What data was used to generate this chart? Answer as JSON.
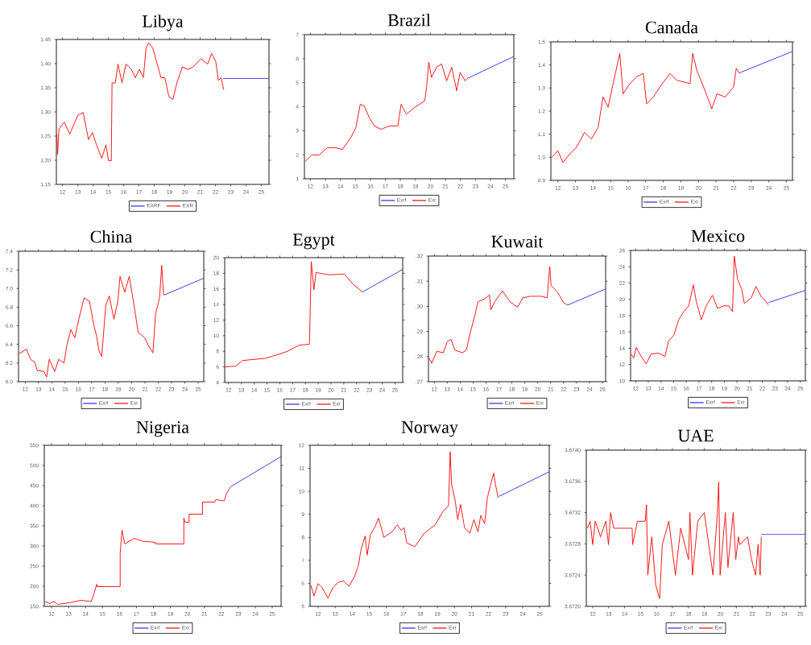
{
  "chart_data": [
    {
      "type": "line",
      "title": "Libya",
      "legend": "bottom",
      "xlim": [
        11.6,
        25.5
      ],
      "ylim": [
        1.15,
        1.45
      ],
      "xticks": [
        12,
        13,
        14,
        15,
        16,
        17,
        18,
        19,
        20,
        21,
        22,
        23,
        24,
        25
      ],
      "yticks": [
        {
          "value": 1.15,
          "label": "1.15"
        },
        {
          "value": 1.2,
          "label": "1.20"
        },
        {
          "value": 1.25,
          "label": "1.25"
        },
        {
          "value": 1.3,
          "label": "1.30"
        },
        {
          "value": 1.35,
          "label": "1.35"
        },
        {
          "value": 1.4,
          "label": "1.40"
        },
        {
          "value": 1.45,
          "label": "1.45"
        }
      ],
      "series": [
        {
          "name": "EXRF",
          "color": "#2828ff",
          "x": [
            22.49,
            25.48
          ],
          "values": [
            1.369,
            1.369
          ]
        },
        {
          "name": "EXR",
          "color": "#ff0000",
          "x": [
            11.63,
            11.68,
            11.77,
            12.12,
            12.47,
            13.0,
            13.35,
            13.7,
            13.96,
            14.22,
            14.57,
            14.84,
            15.01,
            15.19,
            15.24,
            15.45,
            15.63,
            15.89,
            16.15,
            16.5,
            16.76,
            17.03,
            17.29,
            17.46,
            17.64,
            17.9,
            18.25,
            18.43,
            18.69,
            18.95,
            19.22,
            19.48,
            19.83,
            20.18,
            20.53,
            21.05,
            21.49,
            21.75,
            22.02,
            22.19,
            22.37,
            22.54
          ],
          "values": [
            1.254,
            1.212,
            1.265,
            1.279,
            1.254,
            1.293,
            1.299,
            1.243,
            1.257,
            1.232,
            1.204,
            1.232,
            1.199,
            1.199,
            1.36,
            1.36,
            1.399,
            1.36,
            1.399,
            1.388,
            1.371,
            1.388,
            1.371,
            1.432,
            1.443,
            1.432,
            1.393,
            1.371,
            1.371,
            1.332,
            1.326,
            1.36,
            1.393,
            1.388,
            1.393,
            1.41,
            1.399,
            1.421,
            1.404,
            1.365,
            1.371,
            1.346
          ]
        }
      ]
    },
    {
      "type": "line",
      "title": "Brazil",
      "legend": "bottom",
      "xlim": [
        11.6,
        25.56
      ],
      "ylim": [
        1,
        7
      ],
      "xticks": [
        12,
        13,
        14,
        15,
        16,
        17,
        18,
        19,
        20,
        21,
        22,
        23,
        24,
        25
      ],
      "yticks": [
        1,
        2,
        3,
        4,
        5,
        6,
        7
      ],
      "series": [
        {
          "name": "Exrf",
          "color": "#2828ff",
          "x": [
            22.54,
            25.56
          ],
          "values": [
            5.2,
            6.09
          ]
        },
        {
          "name": "Exr",
          "color": "#ff0000",
          "x": [
            11.66,
            12.11,
            12.56,
            13.12,
            13.68,
            14.13,
            14.69,
            15.03,
            15.32,
            15.59,
            15.92,
            16.26,
            16.71,
            17.27,
            17.83,
            18.05,
            18.39,
            18.95,
            19.62,
            19.74,
            19.89,
            20.07,
            20.41,
            20.74,
            21.08,
            21.42,
            21.75,
            21.98,
            22.31,
            22.54
          ],
          "values": [
            1.73,
            2.0,
            1.98,
            2.29,
            2.29,
            2.22,
            2.71,
            3.13,
            4.1,
            4.03,
            3.55,
            3.2,
            3.06,
            3.2,
            3.2,
            4.1,
            3.69,
            3.97,
            4.24,
            4.8,
            5.85,
            5.22,
            5.64,
            5.78,
            5.08,
            5.64,
            4.66,
            5.43,
            5.08,
            5.22
          ]
        }
      ]
    },
    {
      "type": "line",
      "title": "Canada",
      "legend": "bottom",
      "xlim": [
        11.6,
        25.35
      ],
      "ylim": [
        0.9,
        1.5
      ],
      "xticks": [
        12,
        13,
        14,
        15,
        16,
        17,
        18,
        19,
        20,
        21,
        22,
        23,
        24,
        25
      ],
      "yticks": [
        {
          "value": 0.9,
          "label": "0.9"
        },
        {
          "value": 1.0,
          "label": "1.0"
        },
        {
          "value": 1.1,
          "label": "1.1"
        },
        {
          "value": 1.2,
          "label": "1.2"
        },
        {
          "value": 1.3,
          "label": "1.3"
        },
        {
          "value": 1.4,
          "label": "1.4"
        },
        {
          "value": 1.5,
          "label": "1.5"
        }
      ],
      "series": [
        {
          "name": "Exrf",
          "color": "#2828ff",
          "x": [
            22.34,
            25.33
          ],
          "values": [
            1.366,
            1.458
          ]
        },
        {
          "name": "Exr",
          "color": "#ff0000",
          "x": [
            11.64,
            12.0,
            12.29,
            12.67,
            13.05,
            13.52,
            13.9,
            14.29,
            14.57,
            14.86,
            15.14,
            15.52,
            15.71,
            16.1,
            16.48,
            16.86,
            17.05,
            17.43,
            17.81,
            18.38,
            18.76,
            19.52,
            19.67,
            19.9,
            20.29,
            20.76,
            21.05,
            21.52,
            22.0,
            22.15,
            22.34
          ],
          "values": [
            0.999,
            1.028,
            0.977,
            1.014,
            1.043,
            1.108,
            1.079,
            1.13,
            1.261,
            1.217,
            1.319,
            1.45,
            1.275,
            1.319,
            1.349,
            1.363,
            1.232,
            1.261,
            1.305,
            1.363,
            1.334,
            1.319,
            1.45,
            1.378,
            1.305,
            1.21,
            1.275,
            1.261,
            1.305,
            1.385,
            1.363
          ]
        }
      ]
    },
    {
      "type": "line",
      "title": "China",
      "legend": "bottom",
      "xlim": [
        11.5,
        25.42
      ],
      "ylim": [
        6.0,
        7.4
      ],
      "xticks": [
        12,
        13,
        14,
        15,
        16,
        17,
        18,
        19,
        20,
        21,
        22,
        23,
        24,
        25
      ],
      "yticks": [
        {
          "value": 6.0,
          "label": "6.0"
        },
        {
          "value": 6.2,
          "label": "6.2"
        },
        {
          "value": 6.4,
          "label": "6.4"
        },
        {
          "value": 6.6,
          "label": "6.6"
        },
        {
          "value": 6.8,
          "label": "6.8"
        },
        {
          "value": 7.0,
          "label": "7.0"
        },
        {
          "value": 7.2,
          "label": "7.2"
        },
        {
          "value": 7.4,
          "label": "7.4"
        }
      ],
      "series": [
        {
          "name": "Exrf",
          "color": "#2828ff",
          "x": [
            22.44,
            25.41
          ],
          "values": [
            6.93,
            7.11
          ]
        },
        {
          "name": "Exr",
          "color": "#ff0000",
          "x": [
            11.54,
            12.1,
            12.4,
            12.71,
            12.91,
            13.41,
            13.61,
            13.81,
            14.22,
            14.52,
            14.92,
            15.12,
            15.43,
            15.73,
            16.03,
            16.43,
            16.84,
            17.15,
            17.35,
            17.55,
            17.75,
            18.06,
            18.32,
            18.67,
            18.97,
            19.13,
            19.48,
            19.82,
            20.18,
            20.49,
            20.99,
            21.29,
            21.6,
            21.8,
            22.1,
            22.26,
            22.4
          ],
          "values": [
            6.3,
            6.35,
            6.24,
            6.21,
            6.12,
            6.11,
            6.05,
            6.24,
            6.11,
            6.24,
            6.2,
            6.38,
            6.56,
            6.47,
            6.67,
            6.9,
            6.86,
            6.61,
            6.5,
            6.33,
            6.27,
            6.82,
            6.92,
            6.67,
            6.87,
            7.13,
            6.96,
            7.13,
            6.82,
            6.53,
            6.47,
            6.38,
            6.31,
            6.73,
            6.9,
            7.25,
            6.93
          ]
        }
      ]
    },
    {
      "type": "line",
      "title": "Egypt",
      "legend": "bottom",
      "xlim": [
        11.7,
        25.6
      ],
      "ylim": [
        4,
        20
      ],
      "xticks": [
        12,
        13,
        14,
        15,
        16,
        17,
        18,
        19,
        20,
        21,
        22,
        23,
        24,
        25
      ],
      "yticks": [
        4,
        6,
        8,
        10,
        12,
        14,
        16,
        18,
        20
      ],
      "series": [
        {
          "name": "Exrf",
          "color": "#2828ff",
          "x": [
            22.46,
            25.6
          ],
          "values": [
            15.6,
            18.5
          ]
        },
        {
          "name": "Exr",
          "color": "#ff0000",
          "x": [
            11.76,
            12.57,
            13.07,
            13.58,
            14.89,
            15.9,
            16.61,
            17.52,
            18.32,
            18.46,
            18.67,
            18.83,
            19.84,
            21.05,
            21.66,
            22.46
          ],
          "values": [
            6.0,
            6.1,
            6.8,
            6.9,
            7.1,
            7.6,
            8.0,
            8.8,
            8.9,
            19.5,
            15.9,
            18.1,
            17.8,
            17.9,
            16.7,
            15.6
          ]
        }
      ]
    },
    {
      "type": "line",
      "title": "Kuwait",
      "legend": "bottom",
      "xlim": [
        11.55,
        25.25
      ],
      "ylim": [
        0.27,
        0.32
      ],
      "xticks": [
        12,
        13,
        14,
        15,
        16,
        17,
        18,
        19,
        20,
        21,
        22,
        23,
        24,
        25
      ],
      "yticks": [
        {
          "value": 0.27,
          "label": ".27"
        },
        {
          "value": 0.28,
          "label": ".28"
        },
        {
          "value": 0.29,
          "label": ".29"
        },
        {
          "value": 0.3,
          "label": ".30"
        },
        {
          "value": 0.31,
          "label": ".31"
        },
        {
          "value": 0.32,
          "label": ".32"
        }
      ],
      "series": [
        {
          "name": "Exrf",
          "color": "#2828ff",
          "x": [
            22.32,
            25.25
          ],
          "values": [
            0.3005,
            0.3069
          ]
        },
        {
          "name": "Exr",
          "color": "#ff0000",
          "x": [
            11.6,
            11.8,
            12.2,
            12.69,
            12.99,
            13.29,
            13.59,
            14.18,
            14.48,
            14.78,
            15.17,
            15.37,
            15.87,
            16.27,
            16.37,
            16.67,
            17.27,
            17.86,
            18.45,
            18.85,
            19.44,
            20.24,
            20.73,
            20.93,
            21.03,
            21.53,
            22.02,
            22.32
          ],
          "values": [
            0.2794,
            0.2773,
            0.2821,
            0.2815,
            0.2858,
            0.2869,
            0.2826,
            0.2815,
            0.2826,
            0.2895,
            0.297,
            0.3018,
            0.3029,
            0.3045,
            0.2986,
            0.3018,
            0.3061,
            0.3018,
            0.2997,
            0.3034,
            0.304,
            0.304,
            0.3034,
            0.3157,
            0.3083,
            0.3056,
            0.3013,
            0.3005
          ]
        }
      ]
    },
    {
      "type": "line",
      "title": "Mexico",
      "legend": "bottom",
      "xlim": [
        11.6,
        25.4
      ],
      "ylim": [
        10,
        26
      ],
      "xticks": [
        12,
        13,
        14,
        15,
        16,
        17,
        18,
        19,
        20,
        21,
        22,
        23,
        24,
        25
      ],
      "yticks": [
        10,
        12,
        14,
        16,
        18,
        20,
        22,
        24,
        26
      ],
      "series": [
        {
          "name": "Exrf",
          "color": "#2828ff",
          "x": [
            22.48,
            25.4
          ],
          "values": [
            19.6,
            21.1
          ]
        },
        {
          "name": "Exr",
          "color": "#ff0000",
          "x": [
            11.64,
            11.84,
            12.04,
            12.43,
            12.83,
            13.22,
            13.82,
            14.31,
            14.61,
            15.01,
            15.4,
            15.8,
            16.19,
            16.55,
            16.78,
            17.18,
            17.57,
            18.07,
            18.46,
            18.96,
            19.35,
            19.65,
            19.79,
            20.04,
            20.38,
            20.58,
            21.13,
            21.49,
            21.92,
            22.32,
            22.48
          ],
          "values": [
            13.3,
            12.8,
            14.1,
            13.0,
            12.1,
            13.3,
            13.4,
            13.0,
            14.9,
            15.6,
            17.5,
            18.5,
            19.2,
            21.8,
            19.8,
            17.5,
            19.2,
            20.5,
            18.9,
            19.2,
            19.2,
            18.5,
            25.3,
            22.5,
            21.2,
            19.5,
            20.2,
            21.6,
            20.3,
            19.7,
            19.3
          ]
        }
      ]
    },
    {
      "type": "line",
      "title": "Nigeria",
      "legend": "bottom",
      "xlim": [
        11.57,
        25.52
      ],
      "ylim": [
        150,
        550
      ],
      "xticks": [
        12,
        13,
        14,
        15,
        16,
        17,
        18,
        19,
        20,
        21,
        22,
        23,
        24,
        25
      ],
      "yticks": [
        150,
        200,
        250,
        300,
        350,
        400,
        450,
        500,
        550
      ],
      "series": [
        {
          "name": "Exrf",
          "color": "#2828ff",
          "x": [
            22.55,
            25.52
          ],
          "values": [
            447,
            522
          ]
        },
        {
          "name": "Exr",
          "color": "#ff0000",
          "x": [
            11.62,
            11.89,
            12.13,
            12.36,
            13.07,
            13.71,
            14.34,
            14.5,
            14.66,
            14.69,
            16.04,
            16.04,
            16.15,
            16.31,
            16.87,
            17.34,
            18.13,
            18.13,
            19.79,
            19.79,
            19.86,
            20.1,
            20.1,
            20.89,
            20.89,
            21.6,
            21.68,
            22.16,
            22.32,
            22.55
          ],
          "values": [
            162,
            157,
            162,
            155,
            159,
            165,
            162,
            182,
            205,
            199,
            199,
            282,
            339,
            305,
            319,
            312,
            309,
            305,
            305,
            369,
            359,
            359,
            379,
            379,
            409,
            409,
            415,
            412,
            432,
            447
          ]
        }
      ]
    },
    {
      "type": "line",
      "title": "Norway",
      "legend": "bottom",
      "xlim": [
        11.53,
        25.56
      ],
      "ylim": [
        5,
        12
      ],
      "xticks": [
        12,
        13,
        14,
        15,
        16,
        17,
        18,
        19,
        20,
        21,
        22,
        23,
        24,
        25
      ],
      "yticks": [
        5,
        6,
        7,
        8,
        9,
        10,
        11,
        12
      ],
      "series": [
        {
          "name": "Exrf",
          "color": "#2828ff",
          "x": [
            22.61,
            25.56
          ],
          "values": [
            9.78,
            10.85
          ]
        },
        {
          "name": "Exr",
          "color": "#ff0000",
          "x": [
            11.57,
            11.76,
            12.0,
            12.24,
            12.58,
            12.87,
            13.18,
            13.5,
            13.81,
            14.13,
            14.36,
            14.52,
            14.76,
            14.88,
            15.07,
            15.31,
            15.55,
            15.86,
            16.34,
            16.65,
            16.88,
            17.04,
            17.2,
            17.67,
            18.23,
            18.86,
            19.33,
            19.65,
            19.75,
            19.83,
            20.04,
            20.19,
            20.36,
            20.59,
            20.9,
            21.14,
            21.38,
            21.54,
            21.77,
            21.93,
            22.09,
            22.3,
            22.4,
            22.56
          ],
          "values": [
            5.93,
            5.45,
            5.99,
            5.81,
            5.36,
            5.81,
            6.05,
            6.1,
            5.87,
            6.28,
            6.76,
            7.47,
            8.06,
            7.23,
            8.12,
            8.42,
            8.83,
            8.0,
            8.24,
            8.54,
            8.3,
            8.42,
            7.76,
            7.59,
            8.18,
            8.54,
            9.13,
            9.37,
            11.72,
            10.32,
            9.6,
            8.77,
            9.43,
            8.42,
            8.18,
            8.77,
            8.24,
            8.95,
            8.6,
            9.72,
            10.2,
            10.79,
            10.32,
            9.72
          ]
        }
      ]
    },
    {
      "type": "line",
      "title": "UAE",
      "legend": "bottom",
      "xlim": [
        11.6,
        25.32
      ],
      "ylim": [
        3.672,
        3.674
      ],
      "xticks": [
        12,
        13,
        14,
        15,
        16,
        17,
        18,
        19,
        20,
        21,
        22,
        23,
        24,
        25
      ],
      "yticks": [
        {
          "value": 3.672,
          "label": "3.6720"
        },
        {
          "value": 3.6724,
          "label": "3.6724"
        },
        {
          "value": 3.6728,
          "label": "3.6728"
        },
        {
          "value": 3.6732,
          "label": "3.6732"
        },
        {
          "value": 3.6736,
          "label": "3.6736"
        },
        {
          "value": 3.674,
          "label": "3.6740"
        }
      ],
      "series": [
        {
          "name": "Exrf",
          "color": "#2828ff",
          "x": [
            22.56,
            25.32
          ],
          "values": [
            3.67292,
            3.67292
          ]
        },
        {
          "name": "Exr",
          "color": "#ff0000",
          "x": [
            11.67,
            11.84,
            12.0,
            12.16,
            12.49,
            12.82,
            12.99,
            13.12,
            13.32,
            14.47,
            14.5,
            14.8,
            15.29,
            15.37,
            15.45,
            15.7,
            15.95,
            16.19,
            16.36,
            16.77,
            17.18,
            17.51,
            18.0,
            18.09,
            18.25,
            18.58,
            18.99,
            19.4,
            19.53,
            19.81,
            19.89,
            19.98,
            20.31,
            20.47,
            20.8,
            20.96,
            21.13,
            21.21,
            21.7,
            21.95,
            22.2,
            22.36,
            22.49,
            22.56
          ],
          "values": [
            3.673,
            3.67309,
            3.67279,
            3.67309,
            3.67289,
            3.67309,
            3.67279,
            3.6732,
            3.673,
            3.673,
            3.67279,
            3.67309,
            3.67309,
            3.6733,
            3.6724,
            3.67289,
            3.67227,
            3.6721,
            3.67279,
            3.67309,
            3.6724,
            3.673,
            3.6726,
            3.6732,
            3.6724,
            3.67309,
            3.6732,
            3.6726,
            3.6724,
            3.6732,
            3.67359,
            3.6724,
            3.6732,
            3.6725,
            3.6732,
            3.6726,
            3.67289,
            3.67279,
            3.67289,
            3.6726,
            3.6724,
            3.67279,
            3.6724,
            3.67289
          ]
        }
      ]
    }
  ]
}
